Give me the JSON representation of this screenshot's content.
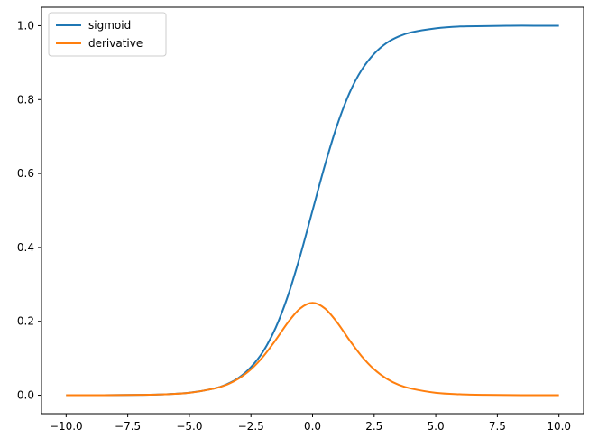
{
  "chart_data": {
    "type": "line",
    "title": "",
    "xlabel": "",
    "ylabel": "",
    "xlim": [
      -11.0,
      11.0
    ],
    "ylim": [
      -0.05,
      1.05
    ],
    "xticks": [
      -10.0,
      -7.5,
      -5.0,
      -2.5,
      0.0,
      2.5,
      5.0,
      7.5,
      10.0
    ],
    "xtick_labels": [
      "−10.0",
      "−7.5",
      "−5.0",
      "−2.5",
      "0.0",
      "2.5",
      "5.0",
      "7.5",
      "10.0"
    ],
    "yticks": [
      0.0,
      0.2,
      0.4,
      0.6,
      0.8,
      1.0
    ],
    "ytick_labels": [
      "0.0",
      "0.2",
      "0.4",
      "0.6",
      "0.8",
      "1.0"
    ],
    "grid": false,
    "legend_position": "top-left",
    "series": [
      {
        "name": "sigmoid",
        "color": "#1f77b4",
        "x": [
          -10,
          -9,
          -8,
          -7,
          -6,
          -5,
          -4,
          -3.5,
          -3,
          -2.5,
          -2,
          -1.5,
          -1,
          -0.5,
          0,
          0.5,
          1,
          1.5,
          2,
          2.5,
          3,
          3.5,
          4,
          5,
          6,
          7,
          8,
          9,
          10
        ],
        "y": [
          0.0,
          0.0001,
          0.0003,
          0.0009,
          0.0025,
          0.0067,
          0.018,
          0.029,
          0.047,
          0.076,
          0.119,
          0.182,
          0.269,
          0.378,
          0.5,
          0.622,
          0.731,
          0.818,
          0.881,
          0.924,
          0.953,
          0.971,
          0.982,
          0.993,
          0.998,
          0.999,
          1.0,
          1.0,
          1.0
        ]
      },
      {
        "name": "derivative",
        "color": "#ff7f0e",
        "x": [
          -10,
          -9,
          -8,
          -7,
          -6,
          -5,
          -4,
          -3.5,
          -3,
          -2.5,
          -2,
          -1.5,
          -1,
          -0.5,
          0,
          0.5,
          1,
          1.5,
          2,
          2.5,
          3,
          3.5,
          4,
          5,
          6,
          7,
          8,
          9,
          10
        ],
        "y": [
          0.0,
          0.0001,
          0.0003,
          0.0009,
          0.0025,
          0.0066,
          0.018,
          0.028,
          0.045,
          0.07,
          0.105,
          0.149,
          0.197,
          0.235,
          0.25,
          0.235,
          0.197,
          0.149,
          0.105,
          0.07,
          0.045,
          0.028,
          0.018,
          0.0066,
          0.0025,
          0.0009,
          0.0003,
          0.0001,
          0.0
        ]
      }
    ]
  }
}
